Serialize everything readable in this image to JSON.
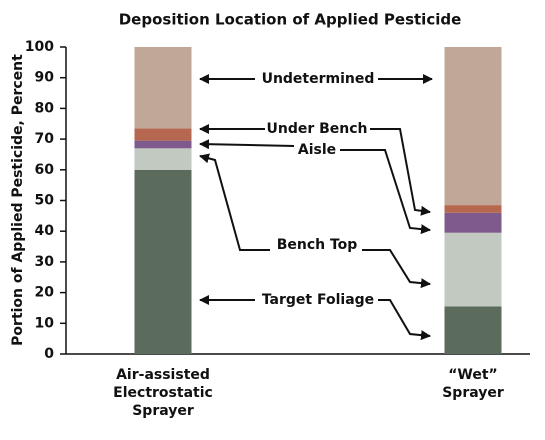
{
  "chart_data": {
    "type": "stacked_bar",
    "title": "Deposition Location of Applied Pesticide",
    "y_label": "Portion of Applied Pesticide, Percent",
    "categories": [
      "Air-assisted\nElectrostatic\nSprayer",
      "“Wet”\nSprayer"
    ],
    "series": [
      {
        "name": "Target Foliage",
        "color": "#5b6b5c",
        "values": [
          60,
          15.5
        ]
      },
      {
        "name": "Bench Top",
        "color": "#c1c9c1",
        "values": [
          7,
          24
        ]
      },
      {
        "name": "Aisle",
        "color": "#7e5b8c",
        "values": [
          2.5,
          6.5
        ]
      },
      {
        "name": "Under Bench",
        "color": "#b5684f",
        "values": [
          4,
          2.5
        ]
      },
      {
        "name": "Undetermined",
        "color": "#c1a797",
        "values": [
          26.5,
          51.5
        ]
      }
    ],
    "ylim": [
      0,
      100
    ],
    "yticks": [
      0,
      10,
      20,
      30,
      40,
      50,
      60,
      70,
      80,
      90,
      100
    ]
  }
}
